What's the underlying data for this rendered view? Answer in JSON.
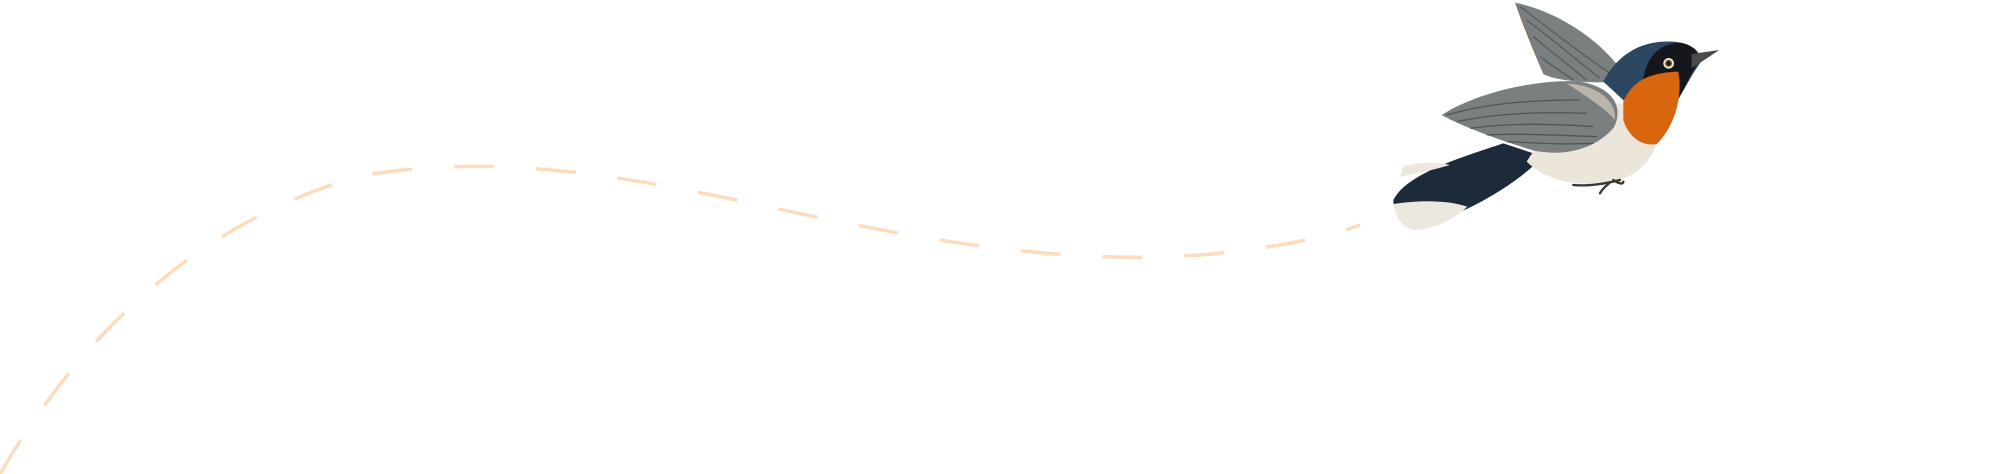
{
  "scene": {
    "background_color": "#ffffff",
    "flight_path": {
      "style": "dashed",
      "color": "#fcdcbc"
    },
    "bird": {
      "icon": "bird-illustration",
      "colors": {
        "head": "#2d4760",
        "mask": "#15171c",
        "throat": "#d9650e",
        "belly": "#ece6da",
        "wing": "#7a7f80",
        "tail": "#1c2a3a",
        "tail_tips": "#ece8df"
      }
    }
  }
}
